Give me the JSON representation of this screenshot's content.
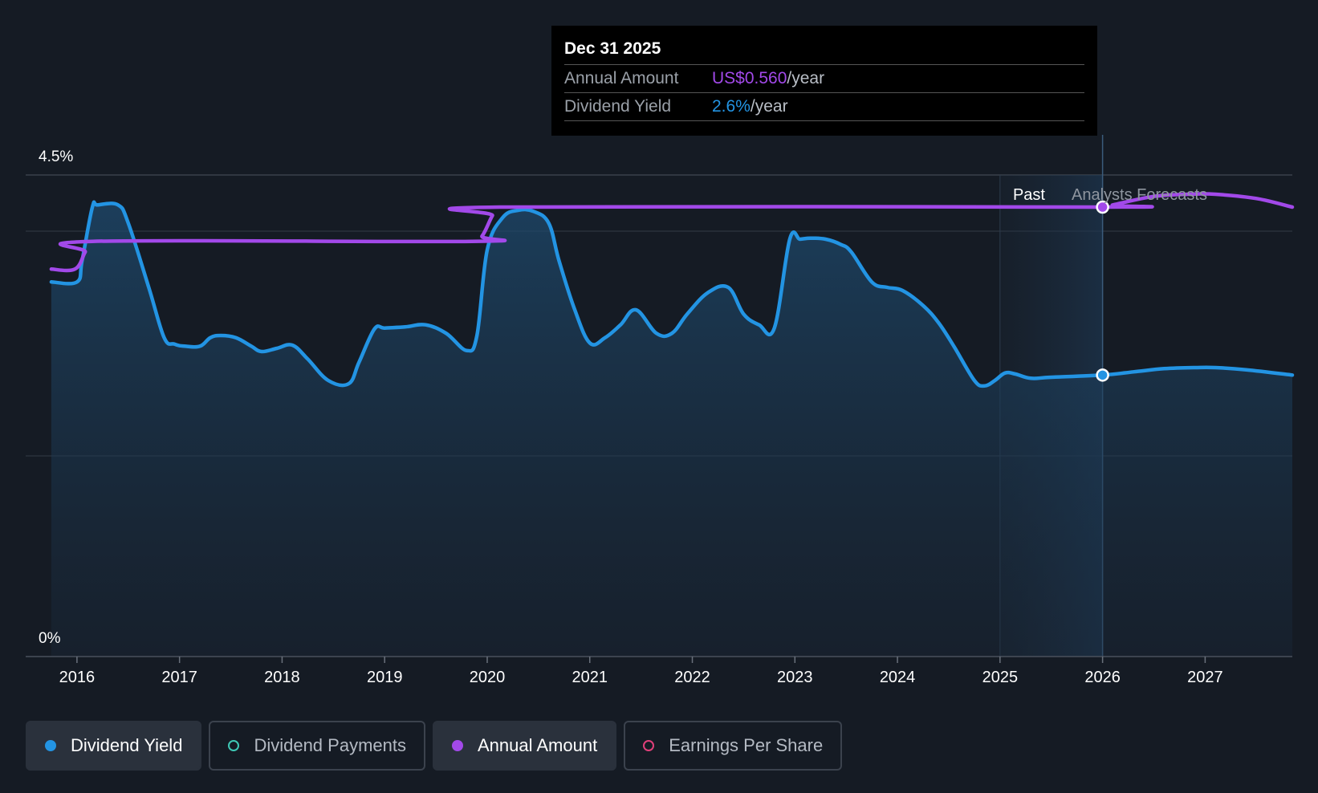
{
  "chart_data": {
    "type": "line",
    "y_axis": {
      "labels": [
        "4.5%",
        "0%"
      ],
      "ylim": [
        0,
        4.5
      ],
      "unit": "%"
    },
    "x_axis": {
      "ticks": [
        "2016",
        "2017",
        "2018",
        "2019",
        "2020",
        "2021",
        "2022",
        "2023",
        "2024",
        "2025",
        "2026",
        "2027"
      ]
    },
    "xlim": [
      2015.5,
      2027.85
    ],
    "grid": true,
    "period_labels": {
      "past": "Past",
      "forecast": "Analysts Forecasts"
    },
    "forecast_start": 2026.0,
    "series": [
      {
        "name": "Dividend Yield",
        "key": "dividend_yield",
        "color": "#2394e3",
        "area": true,
        "x": [
          2015.75,
          2016.0,
          2016.05,
          2016.15,
          2016.2,
          2016.4,
          2016.5,
          2016.7,
          2016.85,
          2016.95,
          2017.05,
          2017.2,
          2017.3,
          2017.4,
          2017.55,
          2017.7,
          2017.8,
          2017.95,
          2018.1,
          2018.25,
          2018.45,
          2018.65,
          2018.75,
          2018.9,
          2019.0,
          2019.2,
          2019.4,
          2019.6,
          2019.8,
          2019.9,
          2020.0,
          2020.15,
          2020.3,
          2020.45,
          2020.6,
          2020.7,
          2020.85,
          2021.0,
          2021.15,
          2021.3,
          2021.45,
          2021.65,
          2021.8,
          2021.95,
          2022.15,
          2022.35,
          2022.5,
          2022.65,
          2022.8,
          2022.95,
          2023.05,
          2023.15,
          2023.3,
          2023.45,
          2023.55,
          2023.75,
          2023.9,
          2024.05,
          2024.25,
          2024.4,
          2024.55,
          2024.75,
          2024.85,
          2024.95,
          2025.05,
          2025.15,
          2025.3,
          2025.5,
          2026.0,
          2026.3,
          2026.6,
          2026.9,
          2027.1,
          2027.4,
          2027.85
        ],
        "y": [
          3.5,
          3.5,
          3.7,
          4.2,
          4.22,
          4.22,
          4.05,
          3.45,
          2.98,
          2.92,
          2.9,
          2.9,
          2.98,
          3.0,
          2.98,
          2.9,
          2.85,
          2.88,
          2.91,
          2.78,
          2.58,
          2.55,
          2.75,
          3.06,
          3.07,
          3.08,
          3.1,
          3.02,
          2.86,
          3.0,
          3.8,
          4.1,
          4.17,
          4.16,
          4.05,
          3.7,
          3.25,
          2.93,
          2.98,
          3.1,
          3.24,
          3.02,
          3.02,
          3.2,
          3.4,
          3.45,
          3.2,
          3.1,
          3.07,
          3.9,
          3.9,
          3.91,
          3.9,
          3.85,
          3.78,
          3.5,
          3.45,
          3.42,
          3.28,
          3.12,
          2.9,
          2.58,
          2.53,
          2.58,
          2.65,
          2.64,
          2.6,
          2.61,
          2.63,
          2.66,
          2.69,
          2.7,
          2.7,
          2.68,
          2.63
        ]
      },
      {
        "name": "Annual Amount",
        "key": "annual_amount",
        "color": "#a249e9",
        "area": false,
        "x": [
          2015.75,
          2015.98,
          2016.08,
          2016.15,
          2019.85,
          2019.95,
          2020.05,
          2020.12,
          2026.0,
          2026.1,
          2026.5,
          2026.85,
          2027.1,
          2027.5,
          2027.85
        ],
        "y": [
          3.62,
          3.62,
          3.78,
          3.88,
          3.88,
          3.93,
          4.12,
          4.2,
          4.2,
          4.22,
          4.3,
          4.32,
          4.32,
          4.28,
          4.2
        ]
      }
    ],
    "tooltip": {
      "date": "Dec 31 2025",
      "rows": [
        {
          "label": "Annual Amount",
          "value": "US$0.560",
          "unit": "/year",
          "color": "#a249e9"
        },
        {
          "label": "Dividend Yield",
          "value": "2.6%",
          "unit": "/year",
          "color": "#2394e3"
        }
      ]
    }
  },
  "legend": [
    {
      "label": "Dividend Yield",
      "color": "#2394e3",
      "active": true,
      "filled": true
    },
    {
      "label": "Dividend Payments",
      "color": "#3fc8b5",
      "active": false,
      "filled": false
    },
    {
      "label": "Annual Amount",
      "color": "#a249e9",
      "active": true,
      "filled": true
    },
    {
      "label": "Earnings Per Share",
      "color": "#e0407a",
      "active": false,
      "filled": false
    }
  ]
}
